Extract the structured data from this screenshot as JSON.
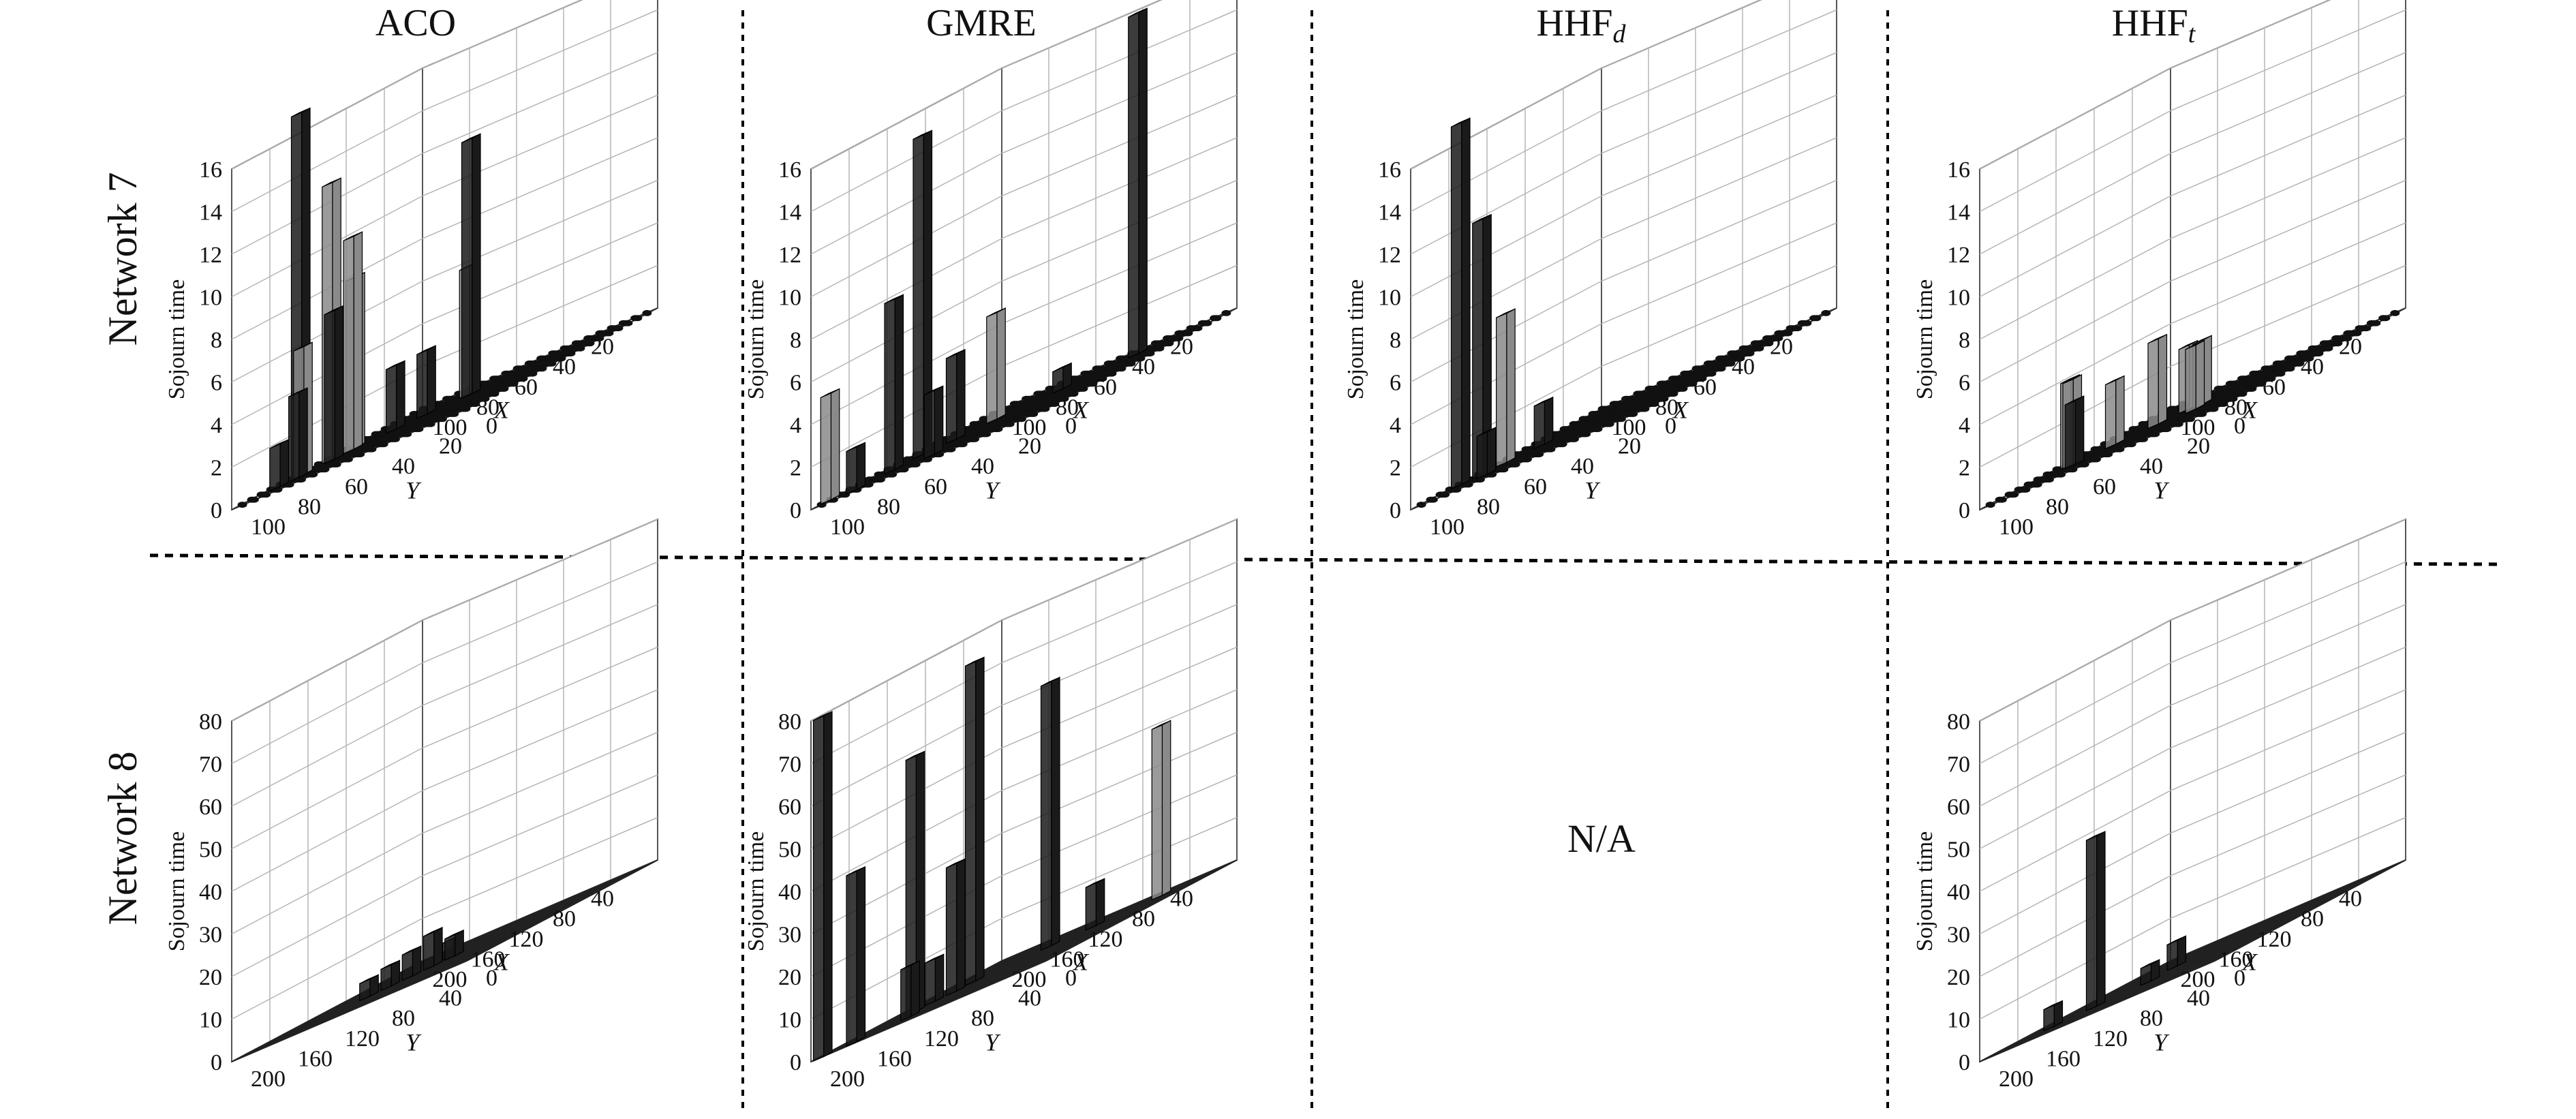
{
  "columns": [
    "ACO",
    "GMRE",
    "HHF_d",
    "HHF_t"
  ],
  "rows": [
    "Network 7",
    "Network 8"
  ],
  "na_text": "N/A",
  "colors": {
    "dark_bar": "#1a1a1a",
    "light_bar": "#8a8a8a",
    "mid_bar": "#555555",
    "grid": "#b5b5b5",
    "divider": "#000000"
  },
  "chart_data": [
    {
      "id": "aco-n7",
      "type": "bar3d",
      "zlabel": "Sojourn time",
      "xlabel": "X",
      "ylabel": "Y",
      "zticks": [
        0,
        2,
        4,
        6,
        8,
        10,
        12,
        14,
        16
      ],
      "zlim": [
        0,
        16
      ],
      "xticks": [
        20,
        40,
        60,
        80,
        100
      ],
      "yticks": [
        0,
        20,
        40,
        60,
        80,
        100
      ],
      "xlim": [
        0,
        100
      ],
      "ylim": [
        0,
        100
      ],
      "floor": "dots",
      "bars": [
        {
          "x": 30,
          "y": 55,
          "z": 12,
          "shade": "dark"
        },
        {
          "x": 25,
          "y": 60,
          "z": 6,
          "shade": "light"
        },
        {
          "x": 35,
          "y": 70,
          "z": 3,
          "shade": "dark"
        },
        {
          "x": 70,
          "y": 95,
          "z": 17,
          "shade": "dark"
        },
        {
          "x": 60,
          "y": 90,
          "z": 13,
          "shade": "light"
        },
        {
          "x": 55,
          "y": 85,
          "z": 10,
          "shade": "light"
        },
        {
          "x": 50,
          "y": 88,
          "z": 8,
          "shade": "light"
        },
        {
          "x": 65,
          "y": 85,
          "z": 7,
          "shade": "dark"
        },
        {
          "x": 75,
          "y": 90,
          "z": 6,
          "shade": "light"
        },
        {
          "x": 80,
          "y": 88,
          "z": 4,
          "shade": "dark"
        },
        {
          "x": 45,
          "y": 75,
          "z": 3,
          "shade": "dark"
        },
        {
          "x": 85,
          "y": 92,
          "z": 2,
          "shade": "dark"
        }
      ]
    },
    {
      "id": "gmre-n7",
      "type": "bar3d",
      "zlabel": "Sojourn time",
      "xlabel": "X",
      "ylabel": "Y",
      "zticks": [
        0,
        2,
        4,
        6,
        8,
        10,
        12,
        14,
        16
      ],
      "zlim": [
        0,
        16
      ],
      "xticks": [
        20,
        40,
        60,
        80,
        100
      ],
      "yticks": [
        0,
        20,
        40,
        60,
        80,
        100
      ],
      "xlim": [
        0,
        100
      ],
      "ylim": [
        0,
        100
      ],
      "floor": "dots",
      "bars": [
        {
          "x": 15,
          "y": 30,
          "z": 16,
          "shade": "dark"
        },
        {
          "x": 60,
          "y": 85,
          "z": 15,
          "shade": "dark"
        },
        {
          "x": 75,
          "y": 85,
          "z": 8,
          "shade": "dark"
        },
        {
          "x": 40,
          "y": 70,
          "z": 5,
          "shade": "light"
        },
        {
          "x": 55,
          "y": 75,
          "z": 4,
          "shade": "dark"
        },
        {
          "x": 90,
          "y": 100,
          "z": 5,
          "shade": "light"
        },
        {
          "x": 30,
          "y": 50,
          "z": 1,
          "shade": "dark"
        },
        {
          "x": 85,
          "y": 60,
          "z": 3,
          "shade": "dark"
        },
        {
          "x": 95,
          "y": 85,
          "z": 2,
          "shade": "dark"
        }
      ]
    },
    {
      "id": "hhfd-n7",
      "type": "bar3d",
      "zlabel": "Sojourn time",
      "xlabel": "X",
      "ylabel": "Y",
      "zticks": [
        0,
        2,
        4,
        6,
        8,
        10,
        12,
        14,
        16
      ],
      "zlim": [
        0,
        16
      ],
      "xticks": [
        20,
        40,
        60,
        80,
        100
      ],
      "yticks": [
        0,
        20,
        40,
        60,
        80,
        100
      ],
      "xlim": [
        0,
        100
      ],
      "ylim": [
        0,
        100
      ],
      "floor": "dots",
      "bars": [
        {
          "x": 80,
          "y": 95,
          "z": 17,
          "shade": "dark"
        },
        {
          "x": 75,
          "y": 90,
          "z": 12,
          "shade": "dark"
        },
        {
          "x": 65,
          "y": 88,
          "z": 7,
          "shade": "light"
        },
        {
          "x": 55,
          "y": 80,
          "z": 2,
          "shade": "dark"
        },
        {
          "x": 85,
          "y": 80,
          "z": 2,
          "shade": "dark"
        }
      ]
    },
    {
      "id": "hhft-n7",
      "type": "bar3d",
      "zlabel": "Sojourn time",
      "xlabel": "X",
      "ylabel": "Y",
      "zticks": [
        0,
        2,
        4,
        6,
        8,
        10,
        12,
        14,
        16
      ],
      "zlim": [
        0,
        16
      ],
      "xticks": [
        20,
        40,
        60,
        80,
        100
      ],
      "yticks": [
        0,
        20,
        40,
        60,
        80,
        100
      ],
      "xlim": [
        0,
        100
      ],
      "ylim": [
        0,
        100
      ],
      "floor": "dots",
      "bars": [
        {
          "x": 40,
          "y": 60,
          "z": 3,
          "shade": "light"
        },
        {
          "x": 50,
          "y": 65,
          "z": 4,
          "shade": "light"
        },
        {
          "x": 60,
          "y": 75,
          "z": 3,
          "shade": "light"
        },
        {
          "x": 70,
          "y": 85,
          "z": 4,
          "shade": "light"
        },
        {
          "x": 75,
          "y": 80,
          "z": 3,
          "shade": "dark"
        },
        {
          "x": 65,
          "y": 90,
          "z": 4,
          "shade": "light"
        },
        {
          "x": 45,
          "y": 50,
          "z": 3,
          "shade": "light"
        },
        {
          "x": 55,
          "y": 45,
          "z": 3,
          "shade": "light"
        }
      ]
    },
    {
      "id": "aco-n8",
      "type": "bar3d",
      "zlabel": "Sojourn time",
      "xlabel": "X",
      "ylabel": "Y",
      "zticks": [
        0,
        10,
        20,
        30,
        40,
        50,
        60,
        70,
        80
      ],
      "zlim": [
        0,
        80
      ],
      "xticks": [
        40,
        80,
        120,
        160,
        200
      ],
      "yticks": [
        0,
        40,
        80,
        120,
        160,
        200
      ],
      "xlim": [
        0,
        200
      ],
      "ylim": [
        0,
        200
      ],
      "floor": "grid",
      "bars": [
        {
          "x": 100,
          "y": 110,
          "z": 8,
          "shade": "dark"
        },
        {
          "x": 110,
          "y": 120,
          "z": 6,
          "shade": "dark"
        },
        {
          "x": 90,
          "y": 100,
          "z": 5,
          "shade": "dark"
        },
        {
          "x": 120,
          "y": 130,
          "z": 5,
          "shade": "dark"
        },
        {
          "x": 80,
          "y": 110,
          "z": 4,
          "shade": "dark"
        },
        {
          "x": 130,
          "y": 140,
          "z": 4,
          "shade": "dark"
        }
      ]
    },
    {
      "id": "gmre-n8",
      "type": "bar3d",
      "zlabel": "Sojourn time",
      "xlabel": "X",
      "ylabel": "Y",
      "zticks": [
        0,
        10,
        20,
        30,
        40,
        50,
        60,
        70,
        80
      ],
      "zlim": [
        0,
        80
      ],
      "xticks": [
        40,
        80,
        120,
        160,
        200
      ],
      "yticks": [
        0,
        40,
        80,
        120,
        160,
        200
      ],
      "xlim": [
        0,
        200
      ],
      "ylim": [
        0,
        200
      ],
      "floor": "grid",
      "bars": [
        {
          "x": 30,
          "y": 40,
          "z": 40,
          "shade": "light"
        },
        {
          "x": 60,
          "y": 110,
          "z": 62,
          "shade": "dark"
        },
        {
          "x": 90,
          "y": 150,
          "z": 75,
          "shade": "dark"
        },
        {
          "x": 140,
          "y": 160,
          "z": 60,
          "shade": "dark"
        },
        {
          "x": 200,
          "y": 190,
          "z": 80,
          "shade": "dark"
        },
        {
          "x": 190,
          "y": 170,
          "z": 40,
          "shade": "dark"
        },
        {
          "x": 110,
          "y": 150,
          "z": 30,
          "shade": "dark"
        },
        {
          "x": 120,
          "y": 160,
          "z": 10,
          "shade": "dark"
        },
        {
          "x": 170,
          "y": 140,
          "z": 12,
          "shade": "dark"
        },
        {
          "x": 50,
          "y": 80,
          "z": 10,
          "shade": "dark"
        }
      ]
    },
    {
      "id": "hhft-n8",
      "type": "bar3d",
      "zlabel": "Sojourn time",
      "xlabel": "X",
      "ylabel": "Y",
      "zticks": [
        0,
        10,
        20,
        30,
        40,
        50,
        60,
        70,
        80
      ],
      "zlim": [
        0,
        80
      ],
      "xticks": [
        40,
        80,
        120,
        160,
        200
      ],
      "yticks": [
        0,
        40,
        80,
        120,
        160,
        200
      ],
      "xlim": [
        0,
        200
      ],
      "ylim": [
        0,
        200
      ],
      "floor": "grid",
      "bars": [
        {
          "x": 140,
          "y": 150,
          "z": 40,
          "shade": "dark"
        },
        {
          "x": 80,
          "y": 130,
          "z": 6,
          "shade": "dark"
        },
        {
          "x": 160,
          "y": 170,
          "z": 5,
          "shade": "dark"
        },
        {
          "x": 120,
          "y": 120,
          "z": 4,
          "shade": "dark"
        }
      ]
    }
  ]
}
